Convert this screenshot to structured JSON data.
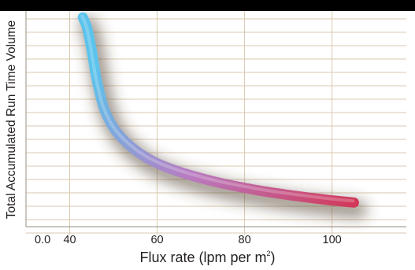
{
  "chart_data": {
    "type": "line",
    "title": "",
    "xlabel": "Flux rate (lpm per m²)",
    "xlabel_main": "Flux rate (lpm per m",
    "xlabel_sup": "2",
    "xlabel_end": ")",
    "ylabel": "Total Accumulated Run Time Volume",
    "x_tick_labels": [
      "0.0",
      "40",
      "60",
      "80",
      "100"
    ],
    "xlim": [
      30,
      117
    ],
    "y_axis_numeric": false,
    "grid": true,
    "legend": "none",
    "series": [
      {
        "x": [
          43,
          44,
          45,
          46,
          47,
          48,
          50,
          52,
          55,
          58,
          61,
          65,
          70,
          75,
          80,
          85,
          90,
          95,
          100,
          105
        ],
        "y": [
          0.97,
          0.92,
          0.82,
          0.7,
          0.61,
          0.54,
          0.46,
          0.41,
          0.355,
          0.315,
          0.285,
          0.255,
          0.225,
          0.2,
          0.18,
          0.162,
          0.147,
          0.134,
          0.122,
          0.112
        ],
        "color_start": "#5cc3ec",
        "color_mid": "#b87cc2",
        "color_end": "#d4324f"
      }
    ]
  }
}
